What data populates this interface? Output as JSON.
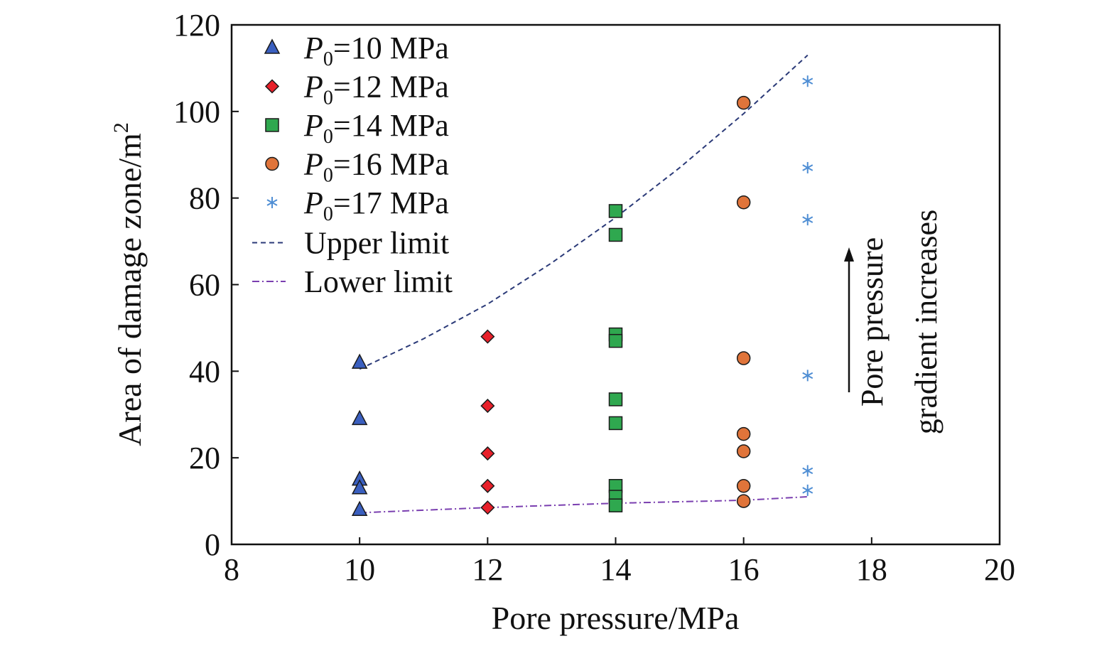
{
  "chart_data": {
    "type": "scatter",
    "title": "",
    "xlabel": "Pore pressure/MPa",
    "ylabel": "Area of damage zone/m",
    "ylabel_superscript": "2",
    "xlim": [
      8,
      20
    ],
    "ylim": [
      0,
      120
    ],
    "xticks": [
      8,
      10,
      12,
      14,
      16,
      18,
      20
    ],
    "yticks": [
      0,
      20,
      40,
      60,
      80,
      100,
      120
    ],
    "grid": false,
    "legend_position": "top-left",
    "series": [
      {
        "legend_prefix": "P",
        "legend_sub": "0",
        "legend_rest": "=10 MPa",
        "marker": "triangle",
        "color": "#3a5fbf",
        "points": [
          [
            10,
            42
          ],
          [
            10,
            29
          ],
          [
            10,
            15
          ],
          [
            10,
            13
          ],
          [
            10,
            8
          ]
        ]
      },
      {
        "legend_prefix": "P",
        "legend_sub": "0",
        "legend_rest": "=12 MPa",
        "marker": "diamond",
        "color": "#e8202a",
        "points": [
          [
            12,
            48
          ],
          [
            12,
            32
          ],
          [
            12,
            21
          ],
          [
            12,
            13.5
          ],
          [
            12,
            8.5
          ]
        ]
      },
      {
        "legend_prefix": "P",
        "legend_sub": "0",
        "legend_rest": "=14 MPa",
        "marker": "square",
        "color": "#2fa84f",
        "points": [
          [
            14,
            77
          ],
          [
            14,
            71.5
          ],
          [
            14,
            48.5
          ],
          [
            14,
            47
          ],
          [
            14,
            33.5
          ],
          [
            14,
            28
          ],
          [
            14,
            13.5
          ],
          [
            14,
            11
          ],
          [
            14,
            9
          ]
        ]
      },
      {
        "legend_prefix": "P",
        "legend_sub": "0",
        "legend_rest": "=16 MPa",
        "marker": "circle",
        "color": "#e0743a",
        "points": [
          [
            16,
            102
          ],
          [
            16,
            79
          ],
          [
            16,
            43
          ],
          [
            16,
            25.5
          ],
          [
            16,
            21.5
          ],
          [
            16,
            13.5
          ],
          [
            16,
            10
          ]
        ]
      },
      {
        "legend_prefix": "P",
        "legend_sub": "0",
        "legend_rest": "=17 MPa",
        "marker": "asterisk",
        "color": "#4f8ed4",
        "points": [
          [
            17,
            107
          ],
          [
            17,
            87
          ],
          [
            17,
            75
          ],
          [
            17,
            39
          ],
          [
            17,
            17
          ],
          [
            17,
            12.5
          ]
        ]
      }
    ],
    "lines": [
      {
        "name": "Upper limit",
        "style": "dashed",
        "color": "#2b3a78",
        "points": [
          [
            10,
            40.5
          ],
          [
            11,
            47.5
          ],
          [
            12,
            55.5
          ],
          [
            13,
            65
          ],
          [
            14,
            75.5
          ],
          [
            15,
            87
          ],
          [
            16,
            99.5
          ],
          [
            17,
            113
          ]
        ]
      },
      {
        "name": "Lower limit",
        "style": "dashdot",
        "color": "#7a3fb0",
        "points": [
          [
            10,
            7.3
          ],
          [
            12,
            8.5
          ],
          [
            14,
            9.5
          ],
          [
            16,
            10.2
          ],
          [
            17,
            11
          ]
        ]
      }
    ],
    "annotations": [
      {
        "text": "Pore pressure",
        "arrow": "up"
      },
      {
        "text": "gradient increases"
      }
    ]
  }
}
